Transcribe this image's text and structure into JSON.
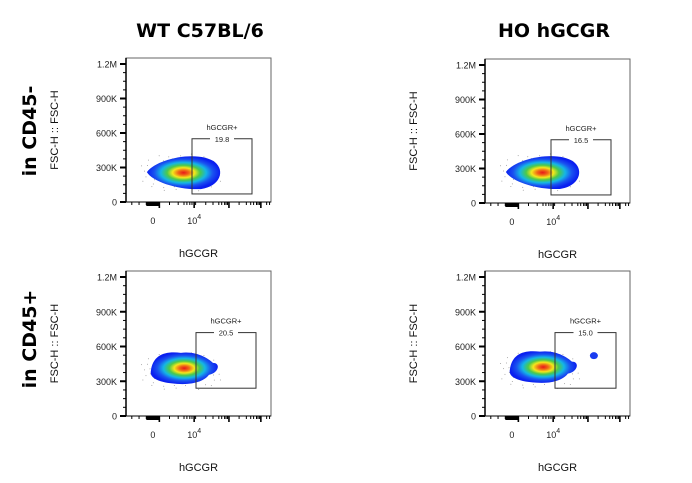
{
  "columns": [
    "WT C57BL/6",
    "HO hGCGR"
  ],
  "rows": [
    "in CD45-",
    "in CD45+"
  ],
  "chart_data": [
    {
      "type": "scatter",
      "subtype": "flow-cytometry-density",
      "column": "WT C57BL/6",
      "row": "in CD45-",
      "xlabel": "hGCGR",
      "ylabel": "FSC-H :: FSC-H",
      "yticks": [
        "0",
        "300K",
        "600K",
        "900K",
        "1.2M"
      ],
      "ytick_values": [
        0,
        300000,
        600000,
        900000,
        1200000
      ],
      "xticks": [
        "0",
        "10^4"
      ],
      "ylim": [
        0,
        1200000
      ],
      "gate": {
        "name": "hGCGR+",
        "percent": "19.8",
        "y_range": [
          70000,
          550000
        ]
      },
      "population_center_y": 260000
    },
    {
      "type": "scatter",
      "subtype": "flow-cytometry-density",
      "column": "HO hGCGR",
      "row": "in CD45-",
      "xlabel": "hGCGR",
      "ylabel": "FSC-H :: FSC-H",
      "yticks": [
        "0",
        "300K",
        "600K",
        "900K",
        "1.2M"
      ],
      "ytick_values": [
        0,
        300000,
        600000,
        900000,
        1200000
      ],
      "xticks": [
        "0",
        "10^4"
      ],
      "ylim": [
        0,
        1200000
      ],
      "gate": {
        "name": "hGCGR+",
        "percent": "16.5",
        "y_range": [
          70000,
          550000
        ]
      },
      "population_center_y": 270000
    },
    {
      "type": "scatter",
      "subtype": "flow-cytometry-density",
      "column": "WT C57BL/6",
      "row": "in CD45+",
      "xlabel": "hGCGR",
      "ylabel": "FSC-H :: FSC-H",
      "yticks": [
        "0",
        "300K",
        "600K",
        "900K",
        "1.2M"
      ],
      "ytick_values": [
        0,
        300000,
        600000,
        900000,
        1200000
      ],
      "xticks": [
        "0",
        "10^4"
      ],
      "ylim": [
        0,
        1200000
      ],
      "gate": {
        "name": "hGCGR+",
        "percent": "20.5",
        "y_range": [
          240000,
          720000
        ]
      },
      "population_center_y": 390000
    },
    {
      "type": "scatter",
      "subtype": "flow-cytometry-density",
      "column": "HO hGCGR",
      "row": "in CD45+",
      "xlabel": "hGCGR",
      "ylabel": "FSC-H :: FSC-H",
      "yticks": [
        "0",
        "300K",
        "600K",
        "900K",
        "1.2M"
      ],
      "ytick_values": [
        0,
        300000,
        600000,
        900000,
        1200000
      ],
      "xticks": [
        "0",
        "10^4"
      ],
      "ylim": [
        0,
        1200000
      ],
      "gate": {
        "name": "hGCGR+",
        "percent": "15.0",
        "y_range": [
          240000,
          720000
        ]
      },
      "population_center_y": 400000
    }
  ]
}
